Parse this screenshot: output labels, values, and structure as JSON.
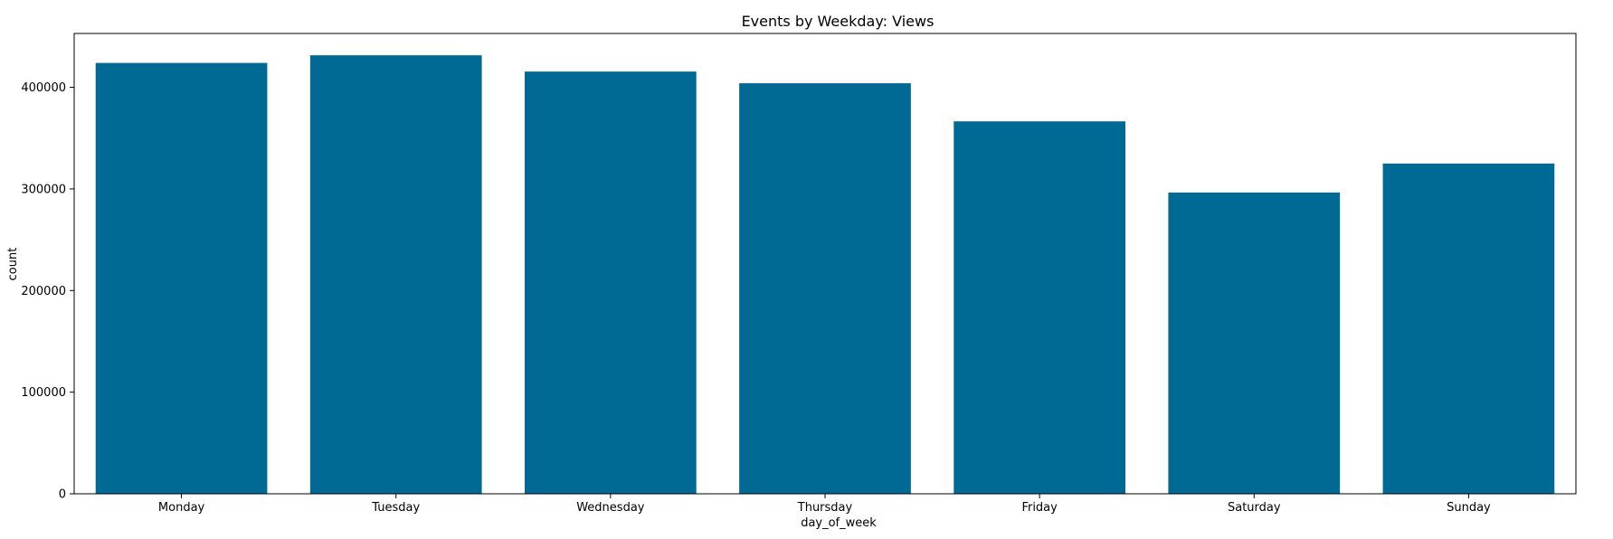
{
  "chart_data": {
    "type": "bar",
    "title": "Events by Weekday: Views",
    "xlabel": "day_of_week",
    "ylabel": "count",
    "categories": [
      "Monday",
      "Tuesday",
      "Wednesday",
      "Thursday",
      "Friday",
      "Saturday",
      "Sunday"
    ],
    "values": [
      424000,
      431500,
      415500,
      404000,
      366500,
      296500,
      325000
    ],
    "ylim": [
      0,
      453000
    ],
    "yticks": [
      0,
      100000,
      200000,
      300000,
      400000
    ],
    "ytick_labels": [
      "0",
      "100000",
      "200000",
      "300000",
      "400000"
    ],
    "grid": false,
    "legend": "none",
    "bar_color": "#006994"
  }
}
